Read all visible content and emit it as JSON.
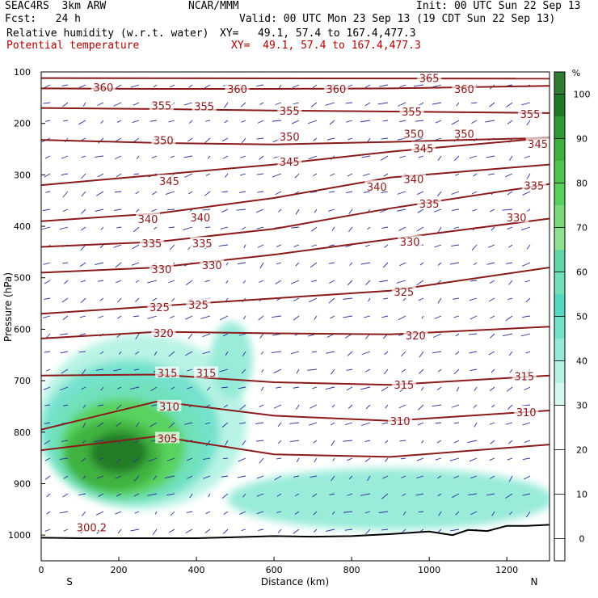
{
  "header": {
    "model": "SEAC4RS  3km ARW",
    "center": "NCAR/MMM",
    "init": "Init: 00 UTC Sun 22 Sep 13",
    "fcst": "Fcst:   24 h",
    "valid": "Valid: 00 UTC Mon 23 Sep 13 (19 CDT Sun 22 Sep 13)",
    "field1": "Relative humidity (w.r.t. water)",
    "xy1": "XY=   49.1, 57.4 to 167.4,477.3",
    "field2": "Potential temperature",
    "xy2": "XY=  49.1, 57.4 to 167.4,477.3"
  },
  "chart_data": {
    "type": "heatmap",
    "xlabel": "Distance (km)",
    "ylabel": "Pressure (hPa)",
    "xlim": [
      0,
      1310
    ],
    "ylim": [
      1050,
      100
    ],
    "xticks": [
      0,
      200,
      400,
      600,
      800,
      1000,
      1200
    ],
    "yticks": [
      100,
      200,
      300,
      400,
      500,
      600,
      700,
      800,
      900,
      1000
    ],
    "end_labels": {
      "left": "S",
      "right": "N"
    },
    "colorbar": {
      "unit": "%",
      "ticks": [
        0,
        10,
        20,
        30,
        40,
        50,
        60,
        70,
        80,
        90,
        100
      ],
      "levels": [
        {
          "from": 100,
          "to": 105,
          "color": "#2e7d32"
        },
        {
          "from": 95,
          "to": 100,
          "color": "#1f7a26"
        },
        {
          "from": 90,
          "to": 95,
          "color": "#2f9a35"
        },
        {
          "from": 85,
          "to": 90,
          "color": "#3fb03f"
        },
        {
          "from": 80,
          "to": 85,
          "color": "#4fc44f"
        },
        {
          "from": 75,
          "to": 80,
          "color": "#58d15a"
        },
        {
          "from": 70,
          "to": 75,
          "color": "#7ad87a"
        },
        {
          "from": 65,
          "to": 70,
          "color": "#8fe08f"
        },
        {
          "from": 60,
          "to": 65,
          "color": "#5fd6a8"
        },
        {
          "from": 55,
          "to": 60,
          "color": "#6fe0b8"
        },
        {
          "from": 50,
          "to": 55,
          "color": "#55d8c0"
        },
        {
          "from": 45,
          "to": 50,
          "color": "#72e2cc"
        },
        {
          "from": 40,
          "to": 45,
          "color": "#93ead8"
        },
        {
          "from": 35,
          "to": 40,
          "color": "#b4f2e4"
        },
        {
          "from": 30,
          "to": 35,
          "color": "#d4f8f0"
        }
      ]
    },
    "theta_contours": [
      {
        "level": 365,
        "x": [
          0,
          1310
        ],
        "y": [
          112,
          113
        ],
        "labels": [
          {
            "x": 1000,
            "p": 112
          }
        ]
      },
      {
        "level": 360,
        "x": [
          0,
          300,
          600,
          900,
          1310
        ],
        "y": [
          132,
          133,
          133,
          132,
          127
        ],
        "labels": [
          {
            "x": 160,
            "p": 130
          },
          {
            "x": 505,
            "p": 133
          },
          {
            "x": 760,
            "p": 133
          },
          {
            "x": 1090,
            "p": 133
          }
        ]
      },
      {
        "level": 355,
        "x": [
          0,
          300,
          600,
          900,
          1310
        ],
        "y": [
          170,
          172,
          175,
          177,
          180
        ],
        "labels": [
          {
            "x": 310,
            "p": 165
          },
          {
            "x": 420,
            "p": 167
          },
          {
            "x": 640,
            "p": 175
          },
          {
            "x": 955,
            "p": 177
          },
          {
            "x": 1260,
            "p": 182
          }
        ]
      },
      {
        "level": 350,
        "x": [
          0,
          300,
          600,
          900,
          1310
        ],
        "y": [
          232,
          238,
          241,
          236,
          228
        ],
        "labels": [
          {
            "x": 315,
            "p": 233
          },
          {
            "x": 640,
            "p": 226
          },
          {
            "x": 960,
            "p": 220
          },
          {
            "x": 1090,
            "p": 220
          }
        ]
      },
      {
        "level": 345,
        "x": [
          0,
          300,
          600,
          900,
          1310
        ],
        "y": [
          320,
          300,
          280,
          255,
          228
        ],
        "labels": [
          {
            "x": 330,
            "p": 312
          },
          {
            "x": 640,
            "p": 274
          },
          {
            "x": 985,
            "p": 248
          },
          {
            "x": 1280,
            "p": 240
          }
        ]
      },
      {
        "level": 340,
        "x": [
          0,
          300,
          600,
          900,
          1310
        ],
        "y": [
          390,
          375,
          345,
          305,
          280
        ],
        "labels": [
          {
            "x": 275,
            "p": 386
          },
          {
            "x": 410,
            "p": 383
          },
          {
            "x": 865,
            "p": 323
          },
          {
            "x": 960,
            "p": 308
          }
        ]
      },
      {
        "level": 335,
        "x": [
          0,
          300,
          600,
          900,
          1310
        ],
        "y": [
          440,
          430,
          405,
          365,
          318
        ],
        "labels": [
          {
            "x": 285,
            "p": 433
          },
          {
            "x": 415,
            "p": 433
          },
          {
            "x": 1000,
            "p": 356
          },
          {
            "x": 1270,
            "p": 321
          }
        ]
      },
      {
        "level": 330,
        "x": [
          0,
          300,
          600,
          900,
          1310
        ],
        "y": [
          490,
          480,
          455,
          425,
          385
        ],
        "labels": [
          {
            "x": 310,
            "p": 483
          },
          {
            "x": 440,
            "p": 475
          },
          {
            "x": 950,
            "p": 430
          },
          {
            "x": 1225,
            "p": 383
          }
        ]
      },
      {
        "level": 325,
        "x": [
          0,
          300,
          600,
          900,
          1310
        ],
        "y": [
          570,
          555,
          540,
          525,
          480
        ],
        "labels": [
          {
            "x": 305,
            "p": 557
          },
          {
            "x": 405,
            "p": 552
          },
          {
            "x": 935,
            "p": 527
          }
        ]
      },
      {
        "level": 320,
        "x": [
          0,
          300,
          600,
          900,
          1310
        ],
        "y": [
          618,
          605,
          608,
          610,
          595
        ],
        "labels": [
          {
            "x": 315,
            "p": 607
          },
          {
            "x": 965,
            "p": 612
          }
        ]
      },
      {
        "level": 315,
        "x": [
          0,
          300,
          600,
          900,
          1310
        ],
        "y": [
          690,
          688,
          703,
          708,
          690
        ],
        "labels": [
          {
            "x": 325,
            "p": 685
          },
          {
            "x": 425,
            "p": 685
          },
          {
            "x": 935,
            "p": 708
          },
          {
            "x": 1245,
            "p": 691
          }
        ]
      },
      {
        "level": 310,
        "x": [
          0,
          300,
          600,
          900,
          1310
        ],
        "y": [
          795,
          740,
          768,
          778,
          758
        ],
        "labels": [
          {
            "x": 330,
            "p": 750
          },
          {
            "x": 925,
            "p": 778
          },
          {
            "x": 1250,
            "p": 761
          }
        ]
      },
      {
        "level": 305,
        "x": [
          0,
          300,
          600,
          900,
          1310
        ],
        "y": [
          835,
          808,
          843,
          848,
          824
        ],
        "labels": [
          {
            "x": 325,
            "p": 812
          }
        ]
      },
      {
        "level": 300.2,
        "x": [],
        "y": [],
        "labels": [
          {
            "x": 130,
            "p": 985
          }
        ]
      }
    ],
    "terrain": {
      "x": [
        0,
        100,
        200,
        300,
        400,
        500,
        600,
        700,
        800,
        900,
        1000,
        1060,
        1100,
        1150,
        1200,
        1250,
        1310
      ],
      "p": [
        1005,
        1006,
        1006,
        1006,
        1006,
        1004,
        1002,
        1003,
        1002,
        998,
        993,
        1000,
        990,
        992,
        982,
        982,
        980
      ]
    },
    "rh_blobs": [
      {
        "level": 35,
        "cx": 260,
        "cp": 780,
        "rx": 270,
        "rp": 170
      },
      {
        "level": 45,
        "cx": 230,
        "cp": 800,
        "rx": 230,
        "rp": 140
      },
      {
        "level": 55,
        "cx": 220,
        "cp": 820,
        "rx": 200,
        "rp": 120
      },
      {
        "level": 75,
        "cx": 210,
        "cp": 830,
        "rx": 160,
        "rp": 95
      },
      {
        "level": 85,
        "cx": 185,
        "cp": 845,
        "rx": 125,
        "rp": 70
      },
      {
        "level": 95,
        "cx": 200,
        "cp": 840,
        "rx": 75,
        "rp": 40
      },
      {
        "level": 40,
        "cx": 490,
        "cp": 660,
        "rx": 55,
        "rp": 75
      },
      {
        "level": 40,
        "cx": 900,
        "cp": 930,
        "rx": 420,
        "rp": 60
      }
    ]
  }
}
